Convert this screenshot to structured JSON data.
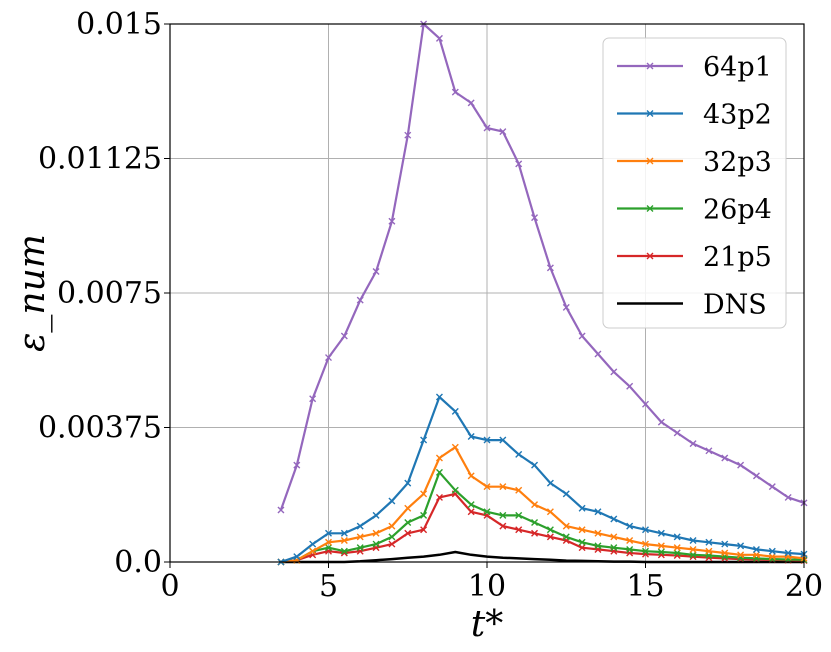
{
  "chart_data": {
    "type": "line",
    "xlabel": "t*",
    "ylabel": "ε_num",
    "xlim": [
      0,
      20
    ],
    "ylim": [
      0,
      0.015
    ],
    "xticks": [
      0,
      5,
      10,
      15,
      20
    ],
    "xtick_labels": [
      "0",
      "5",
      "10",
      "15",
      "20"
    ],
    "yticks": [
      0,
      0.00375,
      0.0075,
      0.01125,
      0.015
    ],
    "ytick_labels": [
      "0.0",
      "0.00375",
      "0.0075",
      "0.01125",
      "0.015"
    ],
    "grid": true,
    "legend_position": "top-right",
    "series": [
      {
        "name": "64p1",
        "color": "#9467bd",
        "marker": "x",
        "x": [
          3.5,
          4.0,
          4.5,
          5.0,
          5.5,
          6.0,
          6.5,
          7.0,
          7.5,
          8.0,
          8.5,
          9.0,
          9.5,
          10.0,
          10.5,
          11.0,
          11.5,
          12.0,
          12.5,
          13.0,
          13.5,
          14.0,
          14.5,
          15.0,
          15.5,
          16.0,
          16.5,
          17.0,
          17.5,
          18.0,
          18.5,
          19.0,
          19.5,
          20.0
        ],
        "y": [
          0.00145,
          0.0027,
          0.00455,
          0.0057,
          0.0063,
          0.0073,
          0.0081,
          0.0095,
          0.0119,
          0.015,
          0.0146,
          0.0131,
          0.0128,
          0.0121,
          0.012,
          0.0111,
          0.0096,
          0.0082,
          0.0071,
          0.0063,
          0.0058,
          0.0053,
          0.0049,
          0.0044,
          0.0039,
          0.0036,
          0.0033,
          0.0031,
          0.0029,
          0.0027,
          0.0024,
          0.0021,
          0.0018,
          0.00165
        ]
      },
      {
        "name": "43p2",
        "color": "#1f77b4",
        "marker": "x",
        "x": [
          3.5,
          4.0,
          4.5,
          5.0,
          5.5,
          6.0,
          6.5,
          7.0,
          7.5,
          8.0,
          8.5,
          9.0,
          9.5,
          10.0,
          10.5,
          11.0,
          11.5,
          12.0,
          12.5,
          13.0,
          13.5,
          14.0,
          14.5,
          15.0,
          15.5,
          16.0,
          16.5,
          17.0,
          17.5,
          18.0,
          18.5,
          19.0,
          19.5,
          20.0
        ],
        "y": [
          0.0,
          0.00015,
          0.0005,
          0.0008,
          0.0008,
          0.001,
          0.0013,
          0.0017,
          0.0022,
          0.0034,
          0.0046,
          0.0042,
          0.0035,
          0.0034,
          0.0034,
          0.003,
          0.0027,
          0.0022,
          0.0019,
          0.0015,
          0.0014,
          0.0012,
          0.001,
          0.0009,
          0.0008,
          0.0007,
          0.0006,
          0.00055,
          0.0005,
          0.00045,
          0.00035,
          0.0003,
          0.00025,
          0.00022
        ]
      },
      {
        "name": "32p3",
        "color": "#ff7f0e",
        "marker": "x",
        "x": [
          3.5,
          4.0,
          4.5,
          5.0,
          5.5,
          6.0,
          6.5,
          7.0,
          7.5,
          8.0,
          8.5,
          9.0,
          9.5,
          10.0,
          10.5,
          11.0,
          11.5,
          12.0,
          12.5,
          13.0,
          13.5,
          14.0,
          14.5,
          15.0,
          15.5,
          16.0,
          16.5,
          17.0,
          17.5,
          18.0,
          18.5,
          19.0,
          19.5,
          20.0
        ],
        "y": [
          0.0,
          5e-05,
          0.0003,
          0.00055,
          0.0006,
          0.0007,
          0.0008,
          0.001,
          0.0015,
          0.0019,
          0.0029,
          0.0032,
          0.0024,
          0.0021,
          0.0021,
          0.002,
          0.0016,
          0.0014,
          0.001,
          0.0009,
          0.0008,
          0.0007,
          0.0006,
          0.0005,
          0.00045,
          0.0004,
          0.00035,
          0.0003,
          0.00025,
          0.0002,
          0.0002,
          0.00015,
          0.00015,
          0.0001
        ]
      },
      {
        "name": "26p4",
        "color": "#2ca02c",
        "marker": "x",
        "x": [
          3.5,
          4.0,
          4.5,
          5.0,
          5.5,
          6.0,
          6.5,
          7.0,
          7.5,
          8.0,
          8.5,
          9.0,
          9.5,
          10.0,
          10.5,
          11.0,
          11.5,
          12.0,
          12.5,
          13.0,
          13.5,
          14.0,
          14.5,
          15.0,
          15.5,
          16.0,
          16.5,
          17.0,
          17.5,
          18.0,
          18.5,
          19.0,
          19.5,
          20.0
        ],
        "y": [
          0.0,
          5e-05,
          0.0003,
          0.0004,
          0.0003,
          0.0004,
          0.0005,
          0.0007,
          0.0011,
          0.0013,
          0.0025,
          0.002,
          0.0016,
          0.0014,
          0.0013,
          0.0013,
          0.0011,
          0.0009,
          0.0007,
          0.00055,
          0.00045,
          0.0004,
          0.00035,
          0.0003,
          0.00028,
          0.00025,
          0.0002,
          0.00018,
          0.00015,
          0.00012,
          0.0001,
          8e-05,
          7e-05,
          6e-05
        ]
      },
      {
        "name": "21p5",
        "color": "#d62728",
        "marker": "x",
        "x": [
          3.5,
          4.0,
          4.5,
          5.0,
          5.5,
          6.0,
          6.5,
          7.0,
          7.5,
          8.0,
          8.5,
          9.0,
          9.5,
          10.0,
          10.5,
          11.0,
          11.5,
          12.0,
          12.5,
          13.0,
          13.5,
          14.0,
          14.5,
          15.0,
          15.5,
          16.0,
          16.5,
          17.0,
          17.5,
          18.0,
          18.5,
          19.0,
          19.5,
          20.0
        ],
        "y": [
          0.0,
          5e-05,
          0.0002,
          0.0003,
          0.00025,
          0.0003,
          0.0004,
          0.0005,
          0.0008,
          0.0009,
          0.0018,
          0.0019,
          0.0014,
          0.0013,
          0.001,
          0.0009,
          0.0008,
          0.0007,
          0.0006,
          0.0004,
          0.00035,
          0.0003,
          0.00025,
          0.00022,
          0.0002,
          0.00018,
          0.00015,
          0.00012,
          0.0001,
          8e-05,
          7e-05,
          6e-05,
          5e-05,
          4e-05
        ]
      },
      {
        "name": "DNS",
        "color": "#000000",
        "marker": "none",
        "x": [
          3.5,
          4.0,
          4.5,
          5.0,
          5.5,
          6.0,
          6.5,
          7.0,
          7.5,
          8.0,
          8.5,
          9.0,
          9.5,
          10.0,
          10.5,
          11.0,
          11.5,
          12.0,
          12.5,
          13.0,
          13.5,
          14.0,
          14.5,
          15.0,
          15.5,
          16.0,
          16.5,
          17.0,
          17.5,
          18.0,
          18.5,
          19.0,
          19.5,
          20.0
        ],
        "y": [
          0.0,
          0.0,
          0.0,
          0.0,
          0.0,
          2e-05,
          5e-05,
          8e-05,
          0.00012,
          0.00015,
          0.0002,
          0.00028,
          0.0002,
          0.00015,
          0.00012,
          0.0001,
          8e-05,
          6e-05,
          4e-05,
          3e-05,
          2e-05,
          1e-05,
          1e-05,
          0.0,
          0.0,
          0.0,
          0.0,
          0.0,
          0.0,
          0.0,
          0.0,
          0.0,
          0.0,
          0.0
        ]
      }
    ]
  }
}
